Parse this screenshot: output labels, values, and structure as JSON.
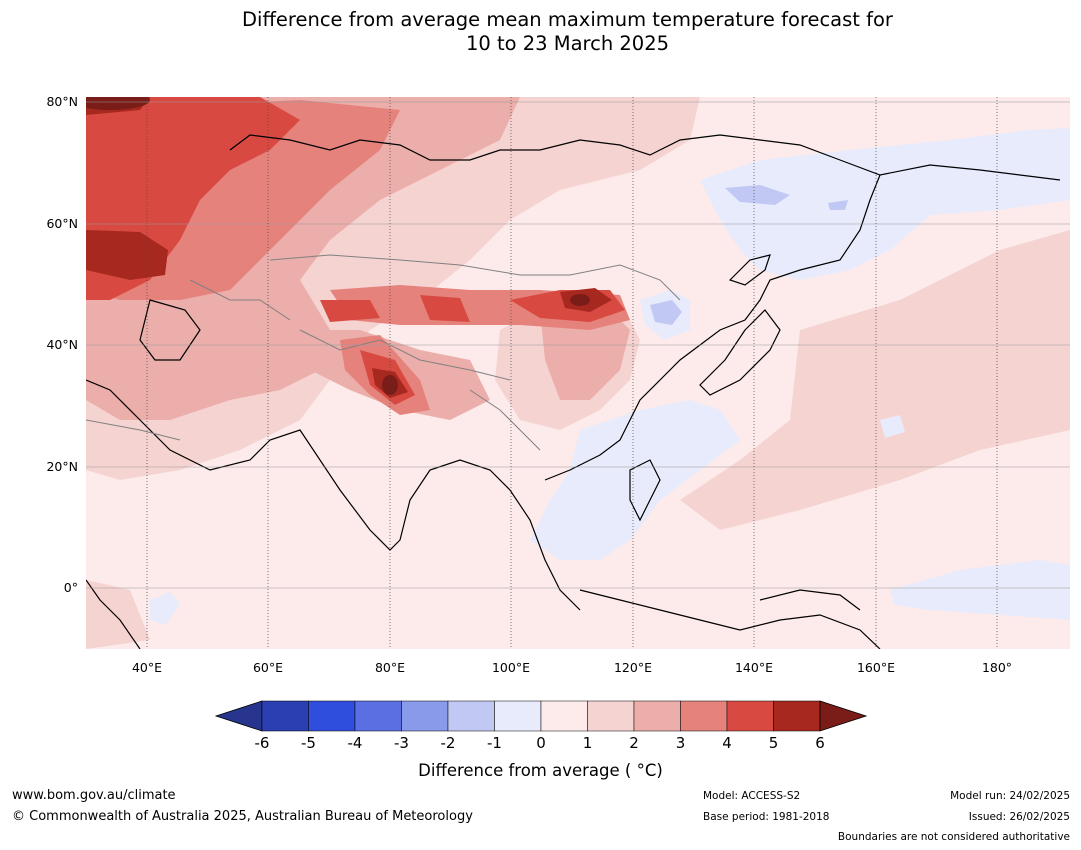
{
  "title": {
    "line1": "Difference from average mean maximum temperature forecast for",
    "line2": "10 to 23 March 2025"
  },
  "map": {
    "lat_labels": [
      "80°N",
      "60°N",
      "40°N",
      "20°N",
      "0°"
    ],
    "lon_labels": [
      "40°E",
      "60°E",
      "80°E",
      "100°E",
      "120°E",
      "140°E",
      "160°E",
      "180°"
    ],
    "lat_values": [
      80,
      60,
      40,
      20,
      0
    ],
    "lon_values": [
      40,
      60,
      80,
      100,
      120,
      140,
      160,
      180
    ],
    "extent": {
      "lon_min": 30,
      "lon_max": 191,
      "lat_min": -10,
      "lat_max": 80
    }
  },
  "colorbar": {
    "ticks": [
      "-6",
      "-5",
      "-4",
      "-3",
      "-2",
      "-1",
      "0",
      "1",
      "2",
      "3",
      "4",
      "5",
      "6"
    ],
    "colors": [
      "#27358f",
      "#2b3fb3",
      "#2f4ede",
      "#5b6fe3",
      "#8a9aeb",
      "#c0c8f3",
      "#e7ebfb",
      "#fcebea",
      "#f5d3d1",
      "#ebaeaa",
      "#e5827c",
      "#d84a41",
      "#a7281f",
      "#7a1c17"
    ],
    "label": "Difference from average ( °C)"
  },
  "footer": {
    "website": "www.bom.gov.au/climate",
    "copyright": "© Commonwealth of Australia 2025, Australian Bureau of Meteorology",
    "model": "Model: ACCESS-S2",
    "base_period": "Base period: 1981-2018",
    "model_run": "Model run: 24/02/2025",
    "issued": "Issued: 26/02/2025",
    "disclaimer": "Boundaries are not considered authoritative"
  }
}
